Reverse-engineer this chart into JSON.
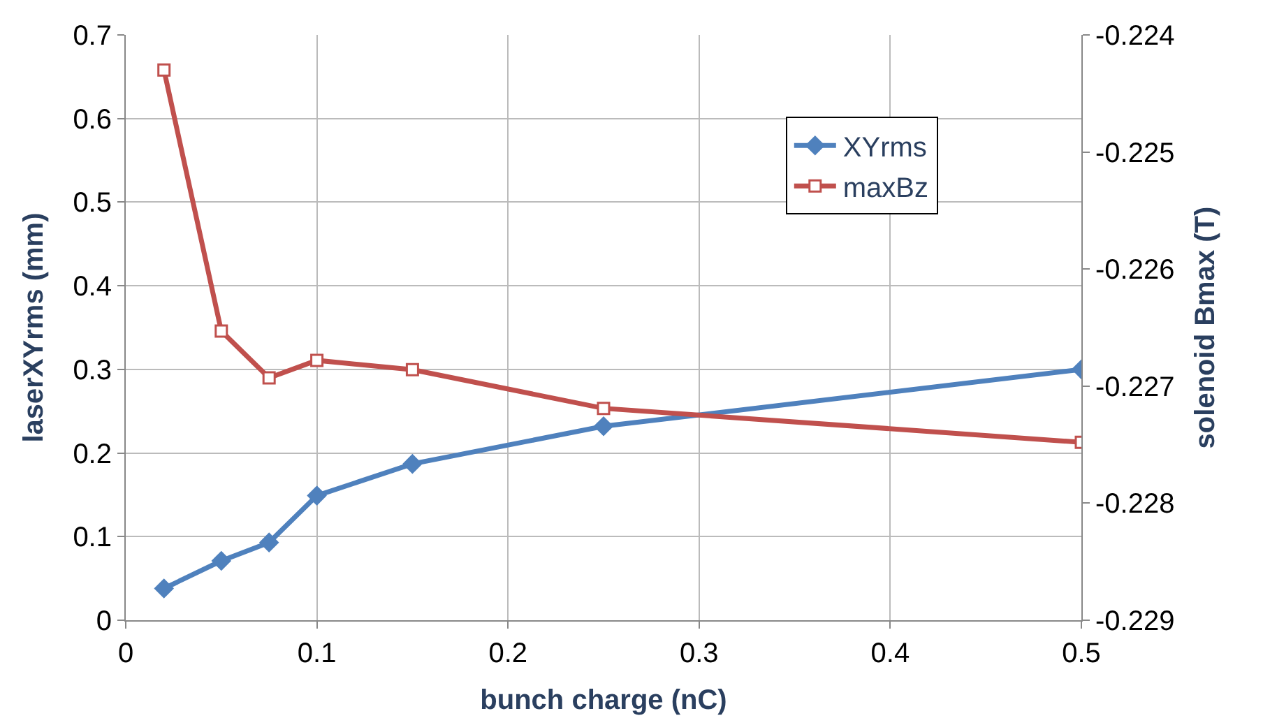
{
  "chart_data": {
    "type": "line",
    "xlabel": "bunch charge (nC)",
    "ylabel": "laserXYrms (mm)",
    "y2label": "solenoid Bmax (T)",
    "x": [
      0.02,
      0.05,
      0.075,
      0.1,
      0.15,
      0.25,
      0.5
    ],
    "series": [
      {
        "name": "XYrms",
        "color": "#4f81bd",
        "marker": "diamond",
        "values": [
          0.038,
          0.071,
          0.093,
          0.149,
          0.187,
          0.232,
          0.3
        ]
      },
      {
        "name": "maxBz",
        "color": "#c0504d",
        "marker": "square",
        "axis": "y2",
        "values": [
          -0.2243,
          -0.22653,
          -0.22693,
          -0.22678,
          -0.22686,
          -0.22719,
          -0.22748
        ]
      }
    ],
    "xlim": [
      0,
      0.5
    ],
    "xticks": [
      0,
      0.1,
      0.2,
      0.3,
      0.4,
      0.5
    ],
    "ylim": [
      0,
      0.7
    ],
    "yticks": [
      0,
      0.1,
      0.2,
      0.3,
      0.4,
      0.5,
      0.6,
      0.7
    ],
    "y2lim": [
      -0.229,
      -0.224
    ],
    "y2ticks": [
      -0.229,
      -0.228,
      -0.227,
      -0.226,
      -0.225,
      -0.224
    ],
    "grid": true,
    "legend": "top right"
  }
}
